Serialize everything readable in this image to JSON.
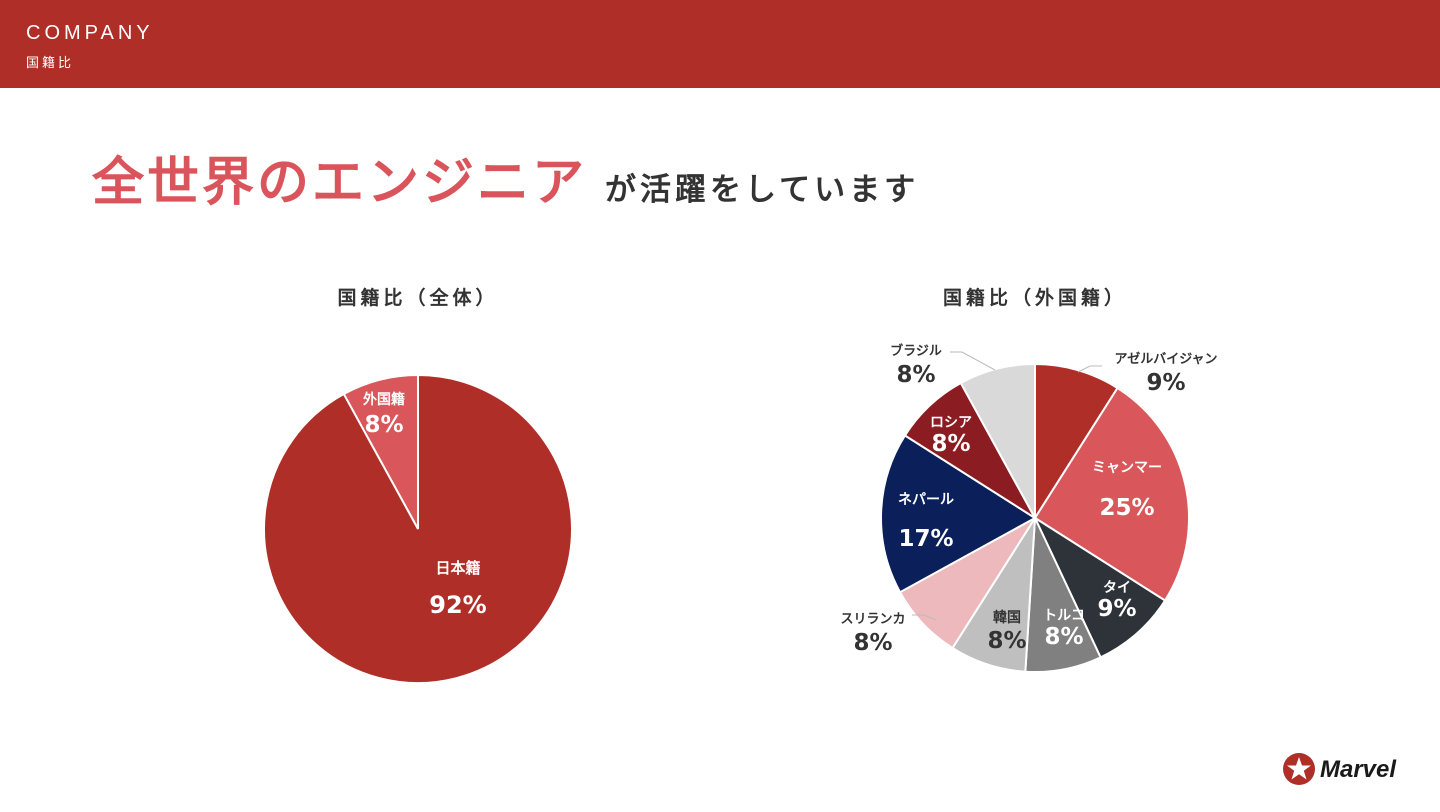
{
  "header": {
    "brand": "COMPANY",
    "subtitle": "国籍比"
  },
  "headline": {
    "accent": "全世界のエンジニア",
    "rest": "が活躍をしています"
  },
  "logo": {
    "name": "Marvel"
  },
  "colors": {
    "brand": "#b02e28",
    "accent": "#da555b"
  },
  "chart_data": [
    {
      "type": "pie",
      "title": "国籍比（全体）",
      "slices": [
        {
          "label": "外国籍",
          "value": 8,
          "value_label": "8%",
          "color": "#d9575b"
        },
        {
          "label": "日本籍",
          "value": 92,
          "value_label": "92%",
          "color": "#b02e28"
        }
      ]
    },
    {
      "type": "pie",
      "title": "国籍比（外国籍）",
      "slices": [
        {
          "label": "アゼルバイジャン",
          "value": 9,
          "value_label": "9%",
          "color": "#b02e28"
        },
        {
          "label": "ミャンマー",
          "value": 25,
          "value_label": "25%",
          "color": "#d9575b"
        },
        {
          "label": "タイ",
          "value": 9,
          "value_label": "9%",
          "color": "#2d3338"
        },
        {
          "label": "トルコ",
          "value": 8,
          "value_label": "8%",
          "color": "#808080"
        },
        {
          "label": "韓国",
          "value": 8,
          "value_label": "8%",
          "color": "#bfbfbf"
        },
        {
          "label": "スリランカ",
          "value": 8,
          "value_label": "8%",
          "color": "#edb9bc"
        },
        {
          "label": "ネパール",
          "value": 17,
          "value_label": "17%",
          "color": "#0b1f5a"
        },
        {
          "label": "ロシア",
          "value": 8,
          "value_label": "8%",
          "color": "#8b1c21"
        },
        {
          "label": "ブラジル",
          "value": 8,
          "value_label": "8%",
          "color": "#d9d9d9"
        }
      ]
    }
  ]
}
